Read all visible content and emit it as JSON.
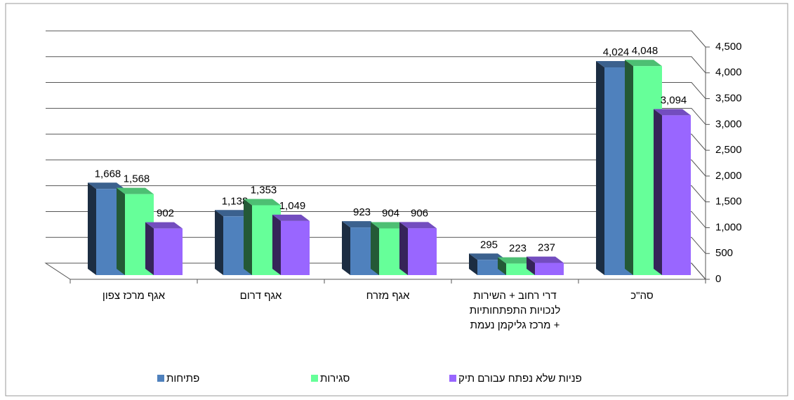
{
  "chart_data": {
    "type": "bar3d",
    "categories": [
      "אגף מרכז צפון",
      "אגף דרום",
      "אגף מזרח",
      "דרי רחוב + השירות\nלנכויות התפתחותיות\n+ מרכז גליקמן נעמת",
      "סה\"כ"
    ],
    "series": [
      {
        "name": "פתיחות",
        "color": "#4f81bd",
        "values": [
          1668,
          1138,
          923,
          295,
          4024
        ],
        "value_labels": [
          "1,668",
          "1,138",
          "923",
          "295",
          "4,024"
        ]
      },
      {
        "name": "סגירות",
        "color": "#66ff99",
        "values": [
          1568,
          1353,
          904,
          223,
          4048
        ],
        "value_labels": [
          "1,568",
          "1,353",
          "904",
          "223",
          "4,048"
        ]
      },
      {
        "name": "פניות שלא נפתח עבורם תיק",
        "color": "#9966ff",
        "values": [
          902,
          1049,
          906,
          237,
          3094
        ],
        "value_labels": [
          "902",
          "1,049",
          "906",
          "237",
          "3,094"
        ]
      }
    ],
    "ylim": [
      0,
      4500
    ],
    "yticks": [
      0,
      500,
      {
        "value": 1000,
        "label": "1,000"
      },
      {
        "value": 1500,
        "label": "1,500"
      },
      {
        "value": 2000,
        "label": "2,000"
      },
      {
        "value": 2500,
        "label": "2,500"
      },
      {
        "value": 3000,
        "label": "3,000"
      },
      {
        "value": 3500,
        "label": "3,500"
      },
      {
        "value": 4000,
        "label": "4,000"
      },
      {
        "value": 4500,
        "label": "4,500"
      }
    ],
    "grid": true,
    "legend": "bottom"
  }
}
